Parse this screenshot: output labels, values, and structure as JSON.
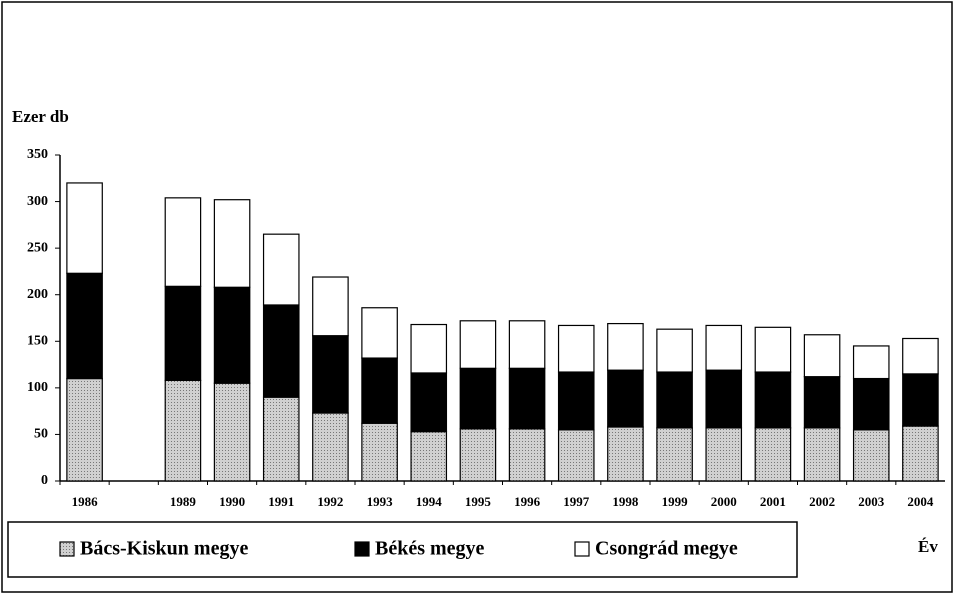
{
  "chart_data": {
    "type": "stacked_bar",
    "y_label": "Ezer db",
    "x_label": "Év",
    "categories": [
      "1986",
      null,
      "1989",
      "1990",
      "1991",
      "1992",
      "1993",
      "1994",
      "1995",
      "1996",
      "1997",
      "1998",
      "1999",
      "2000",
      "2001",
      "2002",
      "2003",
      "2004"
    ],
    "series": [
      {
        "name": "Bács-Kiskun megye",
        "color": "#b8b8b8",
        "values": [
          110,
          null,
          108,
          105,
          90,
          73,
          62,
          53,
          56,
          56,
          55,
          58,
          57,
          57,
          57,
          57,
          55,
          59
        ]
      },
      {
        "name": "Békés megye",
        "color": "#000000",
        "values": [
          113,
          null,
          101,
          103,
          99,
          83,
          70,
          63,
          65,
          65,
          62,
          61,
          60,
          62,
          60,
          55,
          55,
          56
        ]
      },
      {
        "name": "Csongrád megye",
        "color": "#ffffff",
        "values": [
          97,
          null,
          95,
          94,
          76,
          63,
          54,
          52,
          51,
          51,
          50,
          50,
          46,
          48,
          48,
          45,
          35,
          38
        ]
      }
    ],
    "ylim": [
      0,
      350
    ],
    "yticks": [
      0,
      50,
      100,
      150,
      200,
      250,
      300,
      350
    ]
  }
}
